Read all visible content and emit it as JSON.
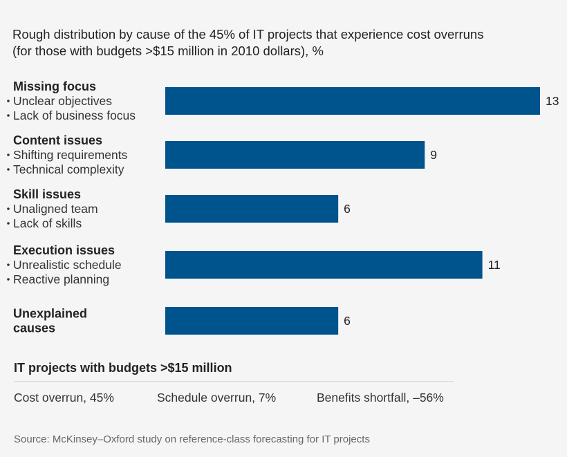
{
  "chart_data": {
    "type": "bar",
    "orientation": "horizontal",
    "title_lines": [
      "Rough distribution by cause of the 45% of IT projects that experience cost overruns",
      "(for those with budgets >$15 million in 2010 dollars), %"
    ],
    "categories": [
      {
        "title_lines": [
          "Missing focus"
        ],
        "bullets": [
          "Unclear objectives",
          "Lack of business focus"
        ],
        "value": 13
      },
      {
        "title_lines": [
          "Content issues"
        ],
        "bullets": [
          "Shifting requirements",
          "Technical complexity"
        ],
        "value": 9
      },
      {
        "title_lines": [
          "Skill issues"
        ],
        "bullets": [
          "Unaligned team",
          "Lack of skills"
        ],
        "value": 6
      },
      {
        "title_lines": [
          "Execution issues"
        ],
        "bullets": [
          "Unrealistic schedule",
          "Reactive planning"
        ],
        "value": 11
      },
      {
        "title_lines": [
          "Unexplained",
          "causes"
        ],
        "bullets": [],
        "value": 6
      }
    ],
    "xlim": [
      0,
      13
    ],
    "bar_color": "#00548d",
    "grid": false,
    "legend": "none"
  },
  "summary": {
    "title": "IT projects with budgets >$15 million",
    "stats": [
      "Cost overrun, 45%",
      "Schedule overrun, 7%",
      "Benefits shortfall, –56%"
    ]
  },
  "source": "Source: McKinsey–Oxford study on reference-class forecasting for IT projects"
}
